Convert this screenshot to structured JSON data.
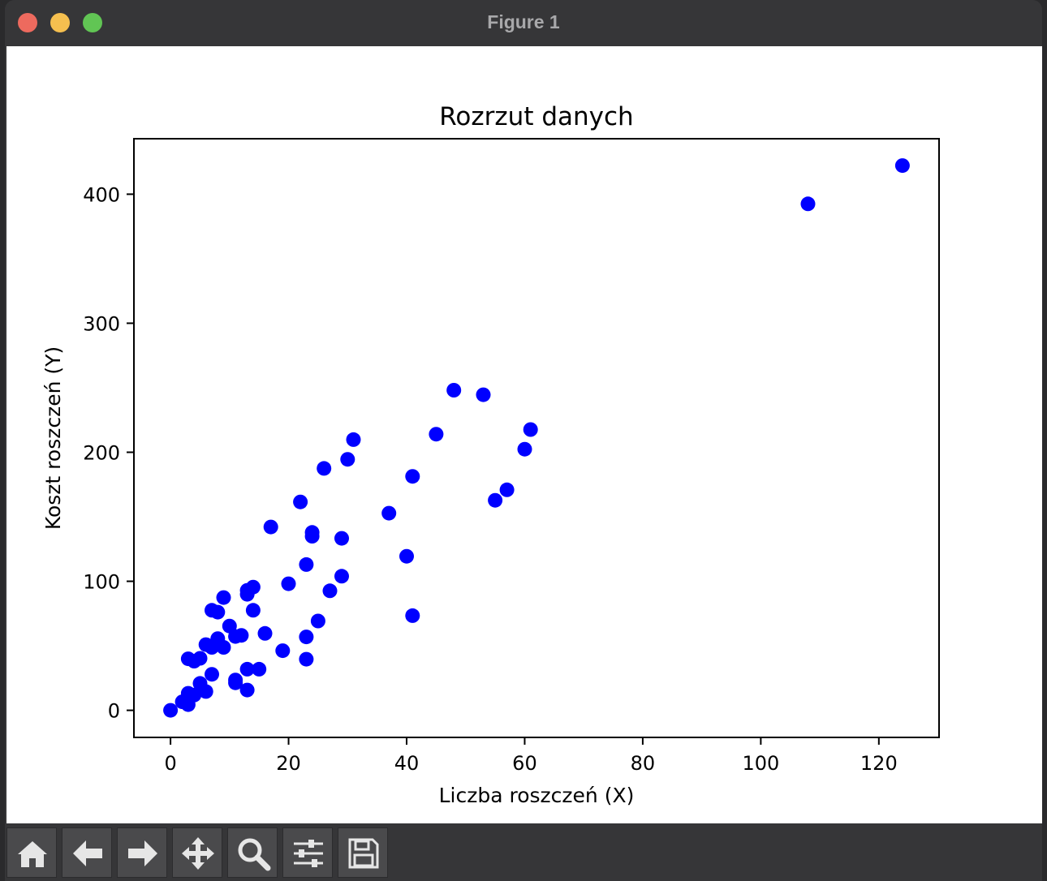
{
  "window": {
    "title": "Figure 1"
  },
  "toolbar": {
    "buttons": [
      {
        "icon": "home-icon"
      },
      {
        "icon": "arrow-left-icon"
      },
      {
        "icon": "arrow-right-icon"
      },
      {
        "icon": "move-icon"
      },
      {
        "icon": "zoom-icon"
      },
      {
        "icon": "sliders-icon"
      },
      {
        "icon": "save-icon"
      }
    ]
  },
  "chart_data": {
    "type": "scatter",
    "title": "Rozrzut danych",
    "xlabel": "Liczba roszczeń (X)",
    "ylabel": "Koszt roszczeń (Y)",
    "xlim": [
      -6.2,
      130.2
    ],
    "ylim": [
      -21,
      443
    ],
    "xticks": [
      0,
      20,
      40,
      60,
      80,
      100,
      120
    ],
    "yticks": [
      0,
      100,
      200,
      300,
      400
    ],
    "marker_color": "#0000ff",
    "grid": false,
    "points": [
      [
        108,
        392.5
      ],
      [
        124,
        422.2
      ],
      [
        48,
        248.1
      ],
      [
        53,
        244.6
      ],
      [
        61,
        217.6
      ],
      [
        31,
        209.8
      ],
      [
        45,
        214.0
      ],
      [
        60,
        202.4
      ],
      [
        30,
        194.5
      ],
      [
        26,
        187.5
      ],
      [
        41,
        181.3
      ],
      [
        57,
        170.9
      ],
      [
        55,
        162.8
      ],
      [
        22,
        161.5
      ],
      [
        37,
        152.8
      ],
      [
        17,
        142.1
      ],
      [
        24,
        137.9
      ],
      [
        24,
        134.9
      ],
      [
        29,
        133.3
      ],
      [
        40,
        119.4
      ],
      [
        23,
        113.0
      ],
      [
        29,
        103.9
      ],
      [
        14,
        95.5
      ],
      [
        20,
        98.1
      ],
      [
        13,
        93.0
      ],
      [
        13,
        89.9
      ],
      [
        9,
        87.4
      ],
      [
        27,
        92.6
      ],
      [
        7,
        77.5
      ],
      [
        8,
        76.1
      ],
      [
        14,
        77.5
      ],
      [
        41,
        73.4
      ],
      [
        25,
        69.2
      ],
      [
        10,
        65.3
      ],
      [
        16,
        59.6
      ],
      [
        12,
        58.1
      ],
      [
        11,
        57.2
      ],
      [
        8,
        55.6
      ],
      [
        6,
        50.9
      ],
      [
        7,
        48.8
      ],
      [
        9,
        48.8
      ],
      [
        19,
        46.2
      ],
      [
        5,
        40.3
      ],
      [
        4,
        38.1
      ],
      [
        3,
        39.9
      ],
      [
        23,
        56.9
      ],
      [
        23,
        39.6
      ],
      [
        7,
        27.9
      ],
      [
        15,
        31.9
      ],
      [
        13,
        31.9
      ],
      [
        11,
        23.5
      ],
      [
        11,
        21.3
      ],
      [
        5,
        20.9
      ],
      [
        6,
        14.6
      ],
      [
        13,
        15.7
      ],
      [
        3,
        13.2
      ],
      [
        4,
        11.8
      ],
      [
        2,
        6.6
      ],
      [
        3,
        4.4
      ],
      [
        0,
        0.0
      ]
    ]
  }
}
